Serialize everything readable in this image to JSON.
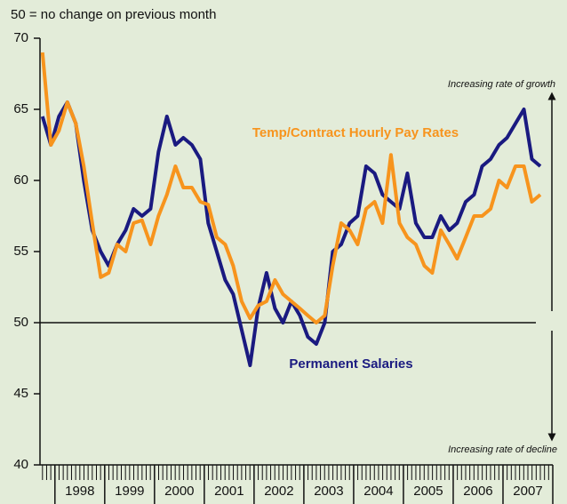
{
  "chart_data": {
    "type": "line",
    "subtitle": "50 = no change on previous month",
    "annotations": [
      "Increasing rate of growth",
      "Increasing rate of decline"
    ],
    "x": [
      1997.75,
      1997.92,
      1998.08,
      1998.25,
      1998.42,
      1998.58,
      1998.75,
      1998.92,
      1999.08,
      1999.25,
      1999.42,
      1999.58,
      1999.75,
      1999.92,
      2000.08,
      2000.25,
      2000.42,
      2000.58,
      2000.75,
      2000.92,
      2001.08,
      2001.25,
      2001.42,
      2001.58,
      2001.75,
      2001.92,
      2002.08,
      2002.25,
      2002.42,
      2002.58,
      2002.75,
      2002.92,
      2003.08,
      2003.25,
      2003.42,
      2003.58,
      2003.75,
      2003.92,
      2004.08,
      2004.25,
      2004.42,
      2004.58,
      2004.75,
      2004.92,
      2005.08,
      2005.25,
      2005.42,
      2005.58,
      2005.75,
      2005.92,
      2006.08,
      2006.25,
      2006.42,
      2006.58,
      2006.75,
      2006.92,
      2007.08,
      2007.25,
      2007.42,
      2007.58,
      2007.75
    ],
    "series": [
      {
        "name": "Permanent Salaries",
        "color": "#1a1a80",
        "values": [
          64.5,
          62.5,
          64.5,
          65.5,
          64,
          60,
          56.5,
          55,
          54,
          55.5,
          56.5,
          58,
          57.5,
          58,
          62,
          64.5,
          62.5,
          63,
          62.5,
          61.5,
          57,
          55,
          53,
          52,
          49.5,
          47,
          51,
          53.5,
          51,
          50,
          51.5,
          50.5,
          49,
          48.5,
          50,
          55,
          55.5,
          57,
          57.5,
          61,
          60.5,
          59,
          58.5,
          58,
          60.5,
          57,
          56,
          56,
          57.5,
          56.5,
          57,
          58.5,
          59,
          61,
          61.5,
          62.5,
          63,
          64,
          65,
          61.5,
          61
        ]
      },
      {
        "name": "Temp/Contract Hourly Pay Rates",
        "color": "#f7941d",
        "values": [
          69,
          62.5,
          63.5,
          65.5,
          64,
          61,
          57,
          53.2,
          53.5,
          55.5,
          55,
          57,
          57.2,
          55.5,
          57.5,
          59,
          61,
          59.5,
          59.5,
          58.5,
          58.3,
          56,
          55.5,
          54,
          51.5,
          50.3,
          51.2,
          51.5,
          53,
          52,
          51.5,
          51,
          50.5,
          50,
          50.5,
          54,
          57,
          56.5,
          55.5,
          58,
          58.5,
          57,
          61.8,
          57,
          56,
          55.5,
          54,
          53.5,
          56.5,
          55.5,
          54.5,
          56,
          57.5,
          57.5,
          58,
          60,
          59.5,
          61,
          61,
          58.5,
          59
        ]
      }
    ],
    "categories": [
      "1998",
      "1999",
      "2000",
      "2001",
      "2002",
      "2003",
      "2004",
      "2005",
      "2006",
      "2007"
    ],
    "xticks": [
      1998,
      1999,
      2000,
      2001,
      2002,
      2003,
      2004,
      2005,
      2006,
      2007,
      2008
    ],
    "xlim": [
      1997.7,
      2008.0
    ],
    "ylim": [
      40,
      70
    ],
    "yticks": [
      40,
      45,
      50,
      55,
      60,
      65,
      70
    ],
    "reference_line": 50
  }
}
